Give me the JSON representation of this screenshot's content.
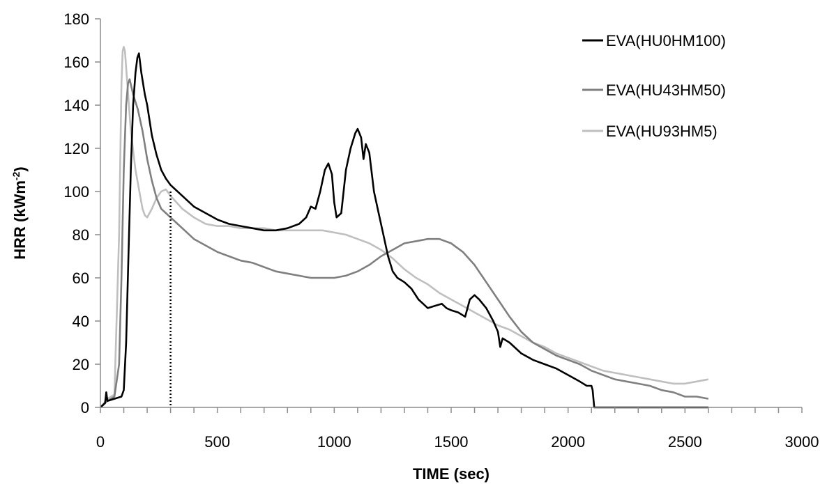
{
  "chart_data": {
    "type": "line",
    "xlabel": "TIME (sec)",
    "ylabel_base": "HRR (kWm",
    "ylabel_sup": "-2",
    "ylabel_end": ")",
    "xlim": [
      0,
      3000
    ],
    "ylim": [
      0,
      180
    ],
    "xticks": [
      0,
      500,
      1000,
      1500,
      2000,
      2500,
      3000
    ],
    "yticks": [
      0,
      20,
      40,
      60,
      80,
      100,
      120,
      140,
      160,
      180
    ],
    "grid": false,
    "legend_position": "top-right",
    "reference_line": {
      "x": 300,
      "y_top": 100,
      "style": "dotted"
    },
    "series": [
      {
        "name": "EVA(HU0HM100)",
        "color": "#000000",
        "points": [
          [
            0,
            0
          ],
          [
            20,
            2
          ],
          [
            25,
            7
          ],
          [
            30,
            3
          ],
          [
            60,
            4
          ],
          [
            90,
            5
          ],
          [
            100,
            8
          ],
          [
            110,
            30
          ],
          [
            120,
            70
          ],
          [
            130,
            110
          ],
          [
            140,
            140
          ],
          [
            150,
            155
          ],
          [
            158,
            162
          ],
          [
            165,
            164
          ],
          [
            175,
            155
          ],
          [
            190,
            145
          ],
          [
            200,
            140
          ],
          [
            220,
            126
          ],
          [
            240,
            117
          ],
          [
            260,
            110
          ],
          [
            280,
            106
          ],
          [
            300,
            103
          ],
          [
            350,
            98
          ],
          [
            400,
            93
          ],
          [
            450,
            90
          ],
          [
            500,
            87
          ],
          [
            550,
            85
          ],
          [
            600,
            84
          ],
          [
            650,
            83
          ],
          [
            700,
            82
          ],
          [
            750,
            82
          ],
          [
            800,
            83
          ],
          [
            850,
            85
          ],
          [
            880,
            88
          ],
          [
            900,
            93
          ],
          [
            920,
            92
          ],
          [
            940,
            100
          ],
          [
            960,
            110
          ],
          [
            975,
            113
          ],
          [
            990,
            108
          ],
          [
            1000,
            95
          ],
          [
            1010,
            88
          ],
          [
            1030,
            90
          ],
          [
            1050,
            110
          ],
          [
            1070,
            120
          ],
          [
            1090,
            127
          ],
          [
            1100,
            129
          ],
          [
            1115,
            125
          ],
          [
            1125,
            115
          ],
          [
            1135,
            122
          ],
          [
            1150,
            118
          ],
          [
            1170,
            100
          ],
          [
            1190,
            90
          ],
          [
            1210,
            80
          ],
          [
            1230,
            70
          ],
          [
            1250,
            63
          ],
          [
            1270,
            60
          ],
          [
            1300,
            58
          ],
          [
            1330,
            55
          ],
          [
            1360,
            50
          ],
          [
            1380,
            48
          ],
          [
            1400,
            46
          ],
          [
            1430,
            47
          ],
          [
            1460,
            48
          ],
          [
            1480,
            46
          ],
          [
            1500,
            45
          ],
          [
            1530,
            44
          ],
          [
            1560,
            42
          ],
          [
            1580,
            50
          ],
          [
            1600,
            52
          ],
          [
            1620,
            50
          ],
          [
            1650,
            46
          ],
          [
            1680,
            40
          ],
          [
            1700,
            35
          ],
          [
            1710,
            28
          ],
          [
            1720,
            32
          ],
          [
            1750,
            30
          ],
          [
            1800,
            25
          ],
          [
            1850,
            22
          ],
          [
            1900,
            20
          ],
          [
            1950,
            18
          ],
          [
            2000,
            15
          ],
          [
            2050,
            12
          ],
          [
            2080,
            10
          ],
          [
            2100,
            10
          ],
          [
            2105,
            8
          ],
          [
            2112,
            0
          ],
          [
            2300,
            0
          ],
          [
            2500,
            0
          ],
          [
            2600,
            0
          ]
        ]
      },
      {
        "name": "EVA(HU43HM50)",
        "color": "#7f7f7f",
        "points": [
          [
            0,
            0
          ],
          [
            30,
            3
          ],
          [
            60,
            5
          ],
          [
            80,
            20
          ],
          [
            90,
            60
          ],
          [
            100,
            110
          ],
          [
            110,
            140
          ],
          [
            118,
            150
          ],
          [
            125,
            152
          ],
          [
            140,
            145
          ],
          [
            160,
            138
          ],
          [
            180,
            128
          ],
          [
            200,
            115
          ],
          [
            220,
            105
          ],
          [
            240,
            97
          ],
          [
            260,
            92
          ],
          [
            280,
            90
          ],
          [
            300,
            88
          ],
          [
            350,
            83
          ],
          [
            400,
            78
          ],
          [
            450,
            75
          ],
          [
            500,
            72
          ],
          [
            550,
            70
          ],
          [
            600,
            68
          ],
          [
            650,
            67
          ],
          [
            700,
            65
          ],
          [
            750,
            63
          ],
          [
            800,
            62
          ],
          [
            850,
            61
          ],
          [
            900,
            60
          ],
          [
            950,
            60
          ],
          [
            1000,
            60
          ],
          [
            1050,
            61
          ],
          [
            1100,
            63
          ],
          [
            1150,
            66
          ],
          [
            1200,
            70
          ],
          [
            1250,
            73
          ],
          [
            1300,
            76
          ],
          [
            1350,
            77
          ],
          [
            1400,
            78
          ],
          [
            1450,
            78
          ],
          [
            1500,
            76
          ],
          [
            1550,
            72
          ],
          [
            1600,
            66
          ],
          [
            1650,
            58
          ],
          [
            1700,
            50
          ],
          [
            1750,
            42
          ],
          [
            1800,
            35
          ],
          [
            1850,
            30
          ],
          [
            1900,
            27
          ],
          [
            1950,
            24
          ],
          [
            2000,
            22
          ],
          [
            2050,
            20
          ],
          [
            2100,
            17
          ],
          [
            2150,
            15
          ],
          [
            2200,
            13
          ],
          [
            2250,
            12
          ],
          [
            2300,
            11
          ],
          [
            2350,
            10
          ],
          [
            2400,
            8
          ],
          [
            2450,
            7
          ],
          [
            2500,
            5
          ],
          [
            2550,
            5
          ],
          [
            2600,
            4
          ]
        ]
      },
      {
        "name": "EVA(HU93HM5)",
        "color": "#bfbfbf",
        "points": [
          [
            0,
            0
          ],
          [
            30,
            4
          ],
          [
            60,
            6
          ],
          [
            80,
            80
          ],
          [
            90,
            150
          ],
          [
            95,
            165
          ],
          [
            100,
            167
          ],
          [
            105,
            165
          ],
          [
            115,
            150
          ],
          [
            130,
            128
          ],
          [
            150,
            110
          ],
          [
            170,
            98
          ],
          [
            180,
            92
          ],
          [
            190,
            89
          ],
          [
            200,
            88
          ],
          [
            220,
            92
          ],
          [
            240,
            97
          ],
          [
            260,
            100
          ],
          [
            280,
            101
          ],
          [
            300,
            98
          ],
          [
            350,
            92
          ],
          [
            400,
            88
          ],
          [
            450,
            85
          ],
          [
            500,
            84
          ],
          [
            550,
            84
          ],
          [
            600,
            83
          ],
          [
            650,
            83
          ],
          [
            700,
            83
          ],
          [
            750,
            82
          ],
          [
            800,
            82
          ],
          [
            850,
            82
          ],
          [
            900,
            82
          ],
          [
            950,
            82
          ],
          [
            1000,
            81
          ],
          [
            1050,
            80
          ],
          [
            1100,
            78
          ],
          [
            1150,
            76
          ],
          [
            1200,
            73
          ],
          [
            1250,
            69
          ],
          [
            1300,
            64
          ],
          [
            1350,
            60
          ],
          [
            1400,
            57
          ],
          [
            1450,
            53
          ],
          [
            1500,
            50
          ],
          [
            1550,
            47
          ],
          [
            1600,
            44
          ],
          [
            1650,
            41
          ],
          [
            1700,
            38
          ],
          [
            1750,
            36
          ],
          [
            1800,
            33
          ],
          [
            1850,
            30
          ],
          [
            1900,
            28
          ],
          [
            1950,
            25
          ],
          [
            2000,
            23
          ],
          [
            2050,
            21
          ],
          [
            2100,
            19
          ],
          [
            2150,
            17
          ],
          [
            2200,
            16
          ],
          [
            2250,
            15
          ],
          [
            2300,
            14
          ],
          [
            2350,
            13
          ],
          [
            2400,
            12
          ],
          [
            2450,
            11
          ],
          [
            2500,
            11
          ],
          [
            2550,
            12
          ],
          [
            2600,
            13
          ]
        ]
      }
    ]
  }
}
